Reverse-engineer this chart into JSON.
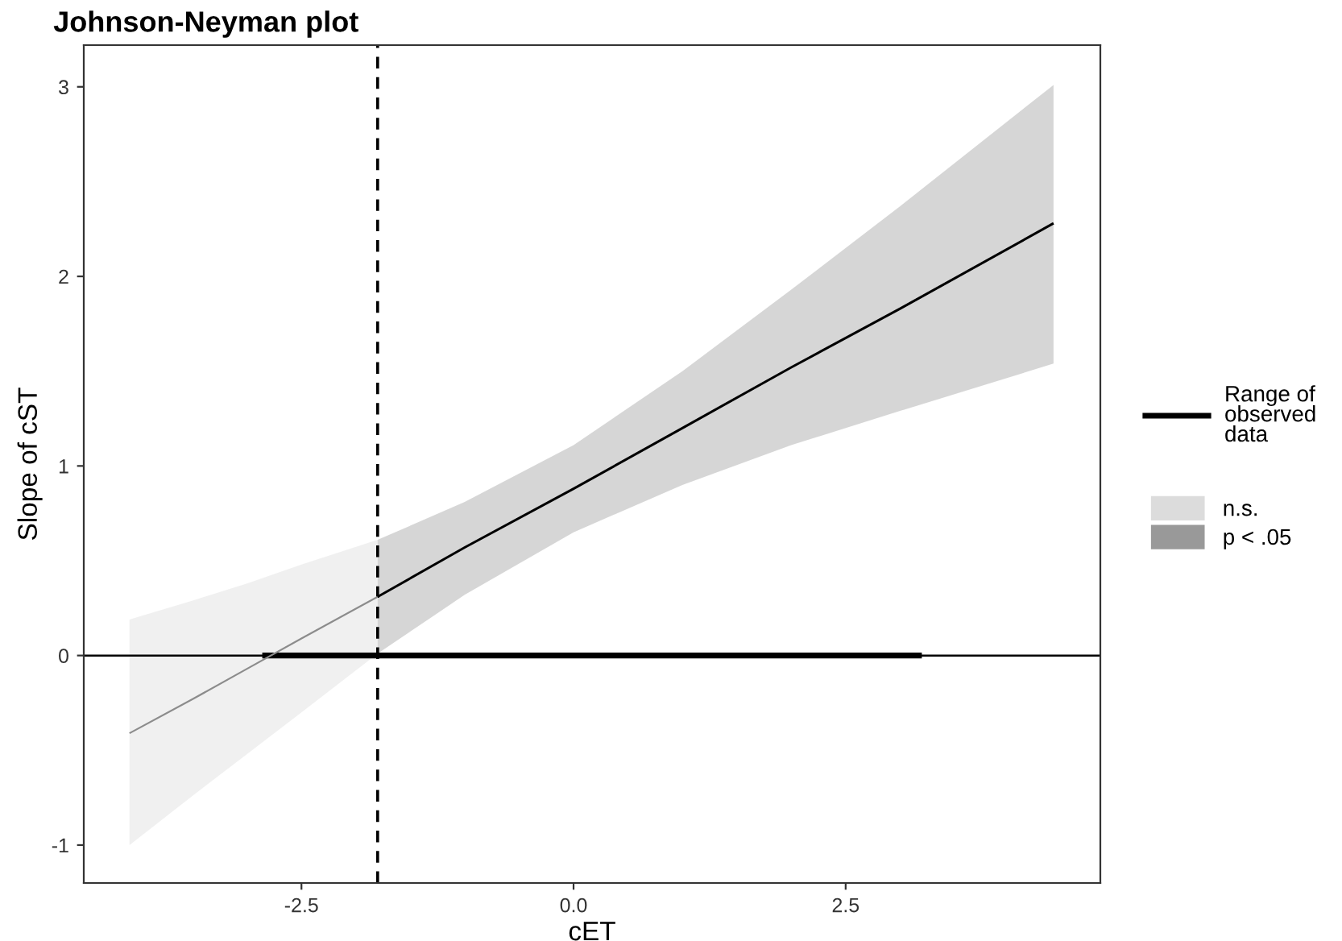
{
  "chart_data": {
    "type": "line",
    "title": "Johnson-Neyman plot",
    "xlabel": "cET",
    "ylabel": "Slope of cST",
    "xlim": [
      -4.5,
      4.84
    ],
    "ylim": [
      -1.2,
      3.22
    ],
    "xticks": [
      {
        "value": -2.5,
        "label": "-2.5"
      },
      {
        "value": 0,
        "label": "0.0"
      },
      {
        "value": 2.5,
        "label": "2.5"
      }
    ],
    "yticks": [
      -1,
      0,
      1,
      2,
      3
    ],
    "grid": false,
    "legend": "right",
    "line_style": "solid",
    "marker": "none",
    "ref_lines": [
      {
        "axis": "y",
        "value": 0,
        "color": "#000000",
        "line_style": "solid"
      },
      {
        "axis": "x",
        "value": -1.8,
        "color": "#000000",
        "line_style": "dashed"
      }
    ],
    "series": [
      {
        "name": "Range of observed data",
        "color": "#000000",
        "x": [
          -2.86,
          3.2
        ],
        "values": [
          0,
          0
        ]
      },
      {
        "name": "n.s.",
        "color": "#8c8c8c",
        "x": [
          -4.08,
          -3.5,
          -3.0,
          -2.5,
          -1.8
        ],
        "values": [
          -0.41,
          -0.23,
          -0.07,
          0.09,
          0.31
        ],
        "lower": [
          -1.0,
          -0.74,
          -0.52,
          -0.3,
          0.01
        ],
        "upper": [
          0.19,
          0.29,
          0.38,
          0.48,
          0.61
        ]
      },
      {
        "name": "p < .05",
        "color": "#000000",
        "x": [
          -1.8,
          -1.0,
          0,
          1,
          2,
          3,
          4.41
        ],
        "values": [
          0.31,
          0.57,
          0.88,
          1.2,
          1.52,
          1.83,
          2.28
        ],
        "lower": [
          0.01,
          0.32,
          0.65,
          0.9,
          1.11,
          1.29,
          1.54
        ],
        "upper": [
          0.61,
          0.81,
          1.11,
          1.5,
          1.93,
          2.37,
          3.01
        ]
      }
    ]
  }
}
